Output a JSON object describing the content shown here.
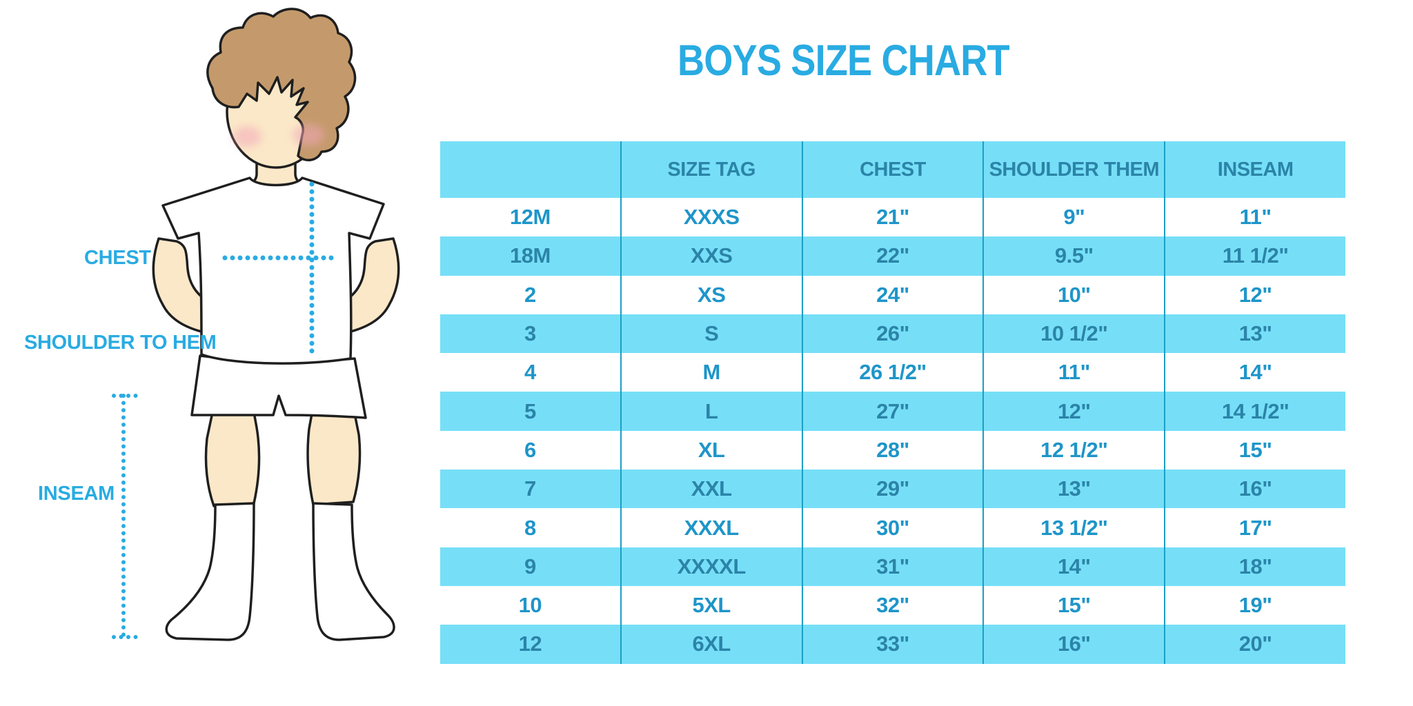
{
  "title": "BOYS SIZE CHART",
  "figure": {
    "labels": {
      "chest": "CHEST",
      "shoulder_to_hem": "SHOULDER TO HEM",
      "inseam": "INSEAM"
    }
  },
  "table": {
    "columns": [
      "",
      "SIZE TAG",
      "CHEST",
      "SHOULDER THEM",
      "INSEAM"
    ],
    "rows": [
      [
        "12M",
        "XXXS",
        "21\"",
        "9\"",
        "11\""
      ],
      [
        "18M",
        "XXS",
        "22\"",
        "9.5\"",
        "11 1/2\""
      ],
      [
        "2",
        "XS",
        "24\"",
        "10\"",
        "12\""
      ],
      [
        "3",
        "S",
        "26\"",
        "10 1/2\"",
        "13\""
      ],
      [
        "4",
        "M",
        "26 1/2\"",
        "11\"",
        "14\""
      ],
      [
        "5",
        "L",
        "27\"",
        "12\"",
        "14 1/2\""
      ],
      [
        "6",
        "XL",
        "28\"",
        "12 1/2\"",
        "15\""
      ],
      [
        "7",
        "XXL",
        "29\"",
        "13\"",
        "16\""
      ],
      [
        "8",
        "XXXL",
        "30\"",
        "13 1/2\"",
        "17\""
      ],
      [
        "9",
        "XXXXL",
        "31\"",
        "14\"",
        "18\""
      ],
      [
        "10",
        "5XL",
        "32\"",
        "15\"",
        "19\""
      ],
      [
        "12",
        "6XL",
        "33\"",
        "16\"",
        "20\""
      ]
    ]
  },
  "colors": {
    "accent_blue": "#29ABE2",
    "row_cyan": "#76DFF7",
    "cyan_row_text": "#2B84A8",
    "white_row_text": "#1E95C9",
    "table_divider": "#1B9EC6",
    "hair_brown": "#C49A6C",
    "skin": "#FBE8C8",
    "cheek_pink": "#F2A8B8",
    "outline": "#1F1F1F"
  }
}
